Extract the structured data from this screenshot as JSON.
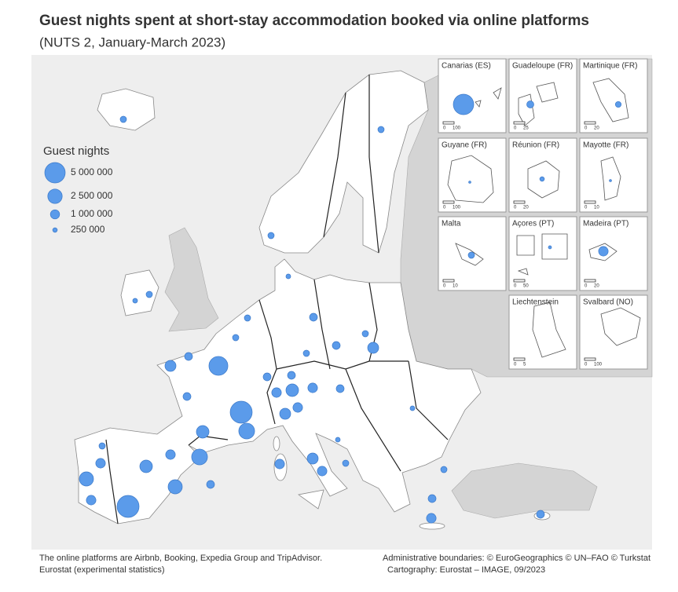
{
  "title": "Guest nights spent at short-stay accommodation booked via online platforms",
  "subtitle": "(NUTS 2, January-March 2023)",
  "legend": {
    "title": "Guest nights",
    "entries": [
      {
        "value": 5000000,
        "label": "5 000 000"
      },
      {
        "value": 2500000,
        "label": "2 500 000"
      },
      {
        "value": 1000000,
        "label": "1 000 000"
      },
      {
        "value": 250000,
        "label": "250 000"
      }
    ]
  },
  "regions": [
    4300000,
    5800000,
    3000000,
    5800000,
    3000000,
    2400000,
    740000,
    2400000,
    1100000,
    1100000,
    470000,
    1900000,
    1100000,
    1900000,
    1450000,
    740000,
    740000,
    740000,
    1900000,
    1100000,
    1450000,
    1100000,
    740000,
    1450000,
    1100000,
    470000,
    1100000,
    1100000,
    740000,
    1450000,
    740000,
    740000,
    470000,
    470000,
    470000,
    470000,
    270000,
    470000,
    470000,
    740000,
    1100000,
    470000,
    740000,
    470000,
    270000,
    470000,
    270000,
    270000
  ],
  "insets": [
    {
      "name": "Canarias (ES)",
      "scale": [
        "0",
        "100"
      ],
      "value": 5000000
    },
    {
      "name": "Guadeloupe (FR)",
      "scale": [
        "0",
        "25"
      ],
      "value": 600000
    },
    {
      "name": "Martinique (FR)",
      "scale": [
        "0",
        "20"
      ],
      "value": 400000
    },
    {
      "name": "Guyane (FR)",
      "scale": [
        "0",
        "100"
      ],
      "value": 60000
    },
    {
      "name": "Réunion (FR)",
      "scale": [
        "0",
        "20"
      ],
      "value": 250000
    },
    {
      "name": "Mayotte (FR)",
      "scale": [
        "0",
        "10"
      ],
      "value": 60000
    },
    {
      "name": "Malta",
      "scale": [
        "0",
        "10"
      ],
      "value": 470000
    },
    {
      "name": "Açores (PT)",
      "scale": [
        "0",
        "50"
      ],
      "value": 120000
    },
    {
      "name": "Madeira (PT)",
      "scale": [
        "0",
        "20"
      ],
      "value": 1100000
    },
    {
      "name": "Liechtenstein",
      "scale": [
        "0",
        "5"
      ]
    },
    {
      "name": "Svalbard (NO)",
      "scale": [
        "0",
        "100"
      ]
    }
  ],
  "footnotes": {
    "left": [
      "The online platforms are Airbnb, Booking, Expedia Group and TripAdvisor.",
      "Eurostat (experimental statistics)"
    ],
    "right": [
      "Administrative boundaries: © EuroGeographics © UN–FAO © Turkstat",
      "Cartography: Eurostat – IMAGE, 09/2023"
    ]
  }
}
